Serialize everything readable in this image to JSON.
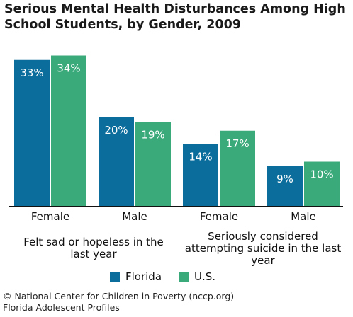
{
  "title": "Serious Mental Health Disturbances Among High School Students, by Gender, 2009",
  "colors": {
    "florida": "#0a6d9c",
    "us": "#3aaa7b",
    "label_text": "#ffffff"
  },
  "chart_data": {
    "type": "bar",
    "title": "Serious Mental Health Disturbances Among High School Students, by Gender, 2009",
    "categories": [
      "Female",
      "Male",
      "Female",
      "Male"
    ],
    "groups": [
      {
        "label": "Felt sad or hopeless in the last year",
        "categories": [
          "Female",
          "Male"
        ]
      },
      {
        "label": "Seriously considered attempting suicide in the last year",
        "categories": [
          "Female",
          "Male"
        ]
      }
    ],
    "series": [
      {
        "name": "Florida",
        "values": [
          33,
          20,
          14,
          9
        ],
        "labels": [
          "33%",
          "20%",
          "14%",
          "9%"
        ]
      },
      {
        "name": "U.S.",
        "values": [
          34,
          19,
          17,
          10
        ],
        "labels": [
          "34%",
          "19%",
          "17%",
          "10%"
        ]
      }
    ],
    "ylim": [
      0,
      36
    ],
    "grid": false,
    "legend": "bottom"
  },
  "legend": {
    "florida": "Florida",
    "us": "U.S."
  },
  "footer": {
    "line1": "© National Center for Children in Poverty (nccp.org)",
    "line2": "Florida Adolescent Profiles"
  }
}
